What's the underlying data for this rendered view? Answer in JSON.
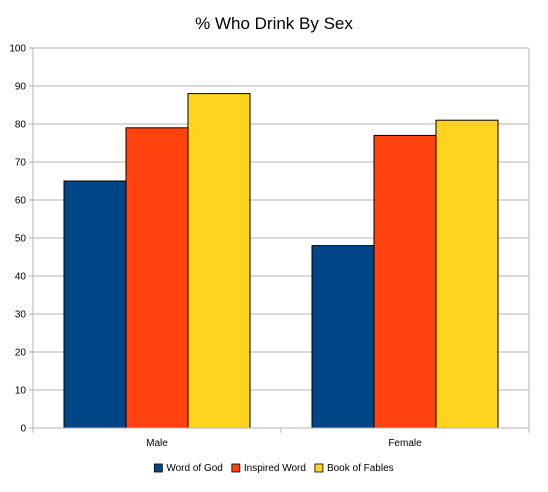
{
  "chart_data": {
    "type": "bar",
    "title": "% Who Drink By Sex",
    "xlabel": "",
    "ylabel": "",
    "categories": [
      "Male",
      "Female"
    ],
    "series": [
      {
        "name": "Word of God",
        "color": "#004586",
        "values": [
          65,
          48
        ]
      },
      {
        "name": "Inspired Word",
        "color": "#ff420e",
        "values": [
          79,
          77
        ]
      },
      {
        "name": "Book of Fables",
        "color": "#ffd320",
        "values": [
          88,
          81
        ]
      }
    ],
    "ylim": [
      0,
      100
    ],
    "yticks": [
      0,
      10,
      20,
      30,
      40,
      50,
      60,
      70,
      80,
      90,
      100
    ],
    "grid": true,
    "legend_position": "bottom"
  }
}
